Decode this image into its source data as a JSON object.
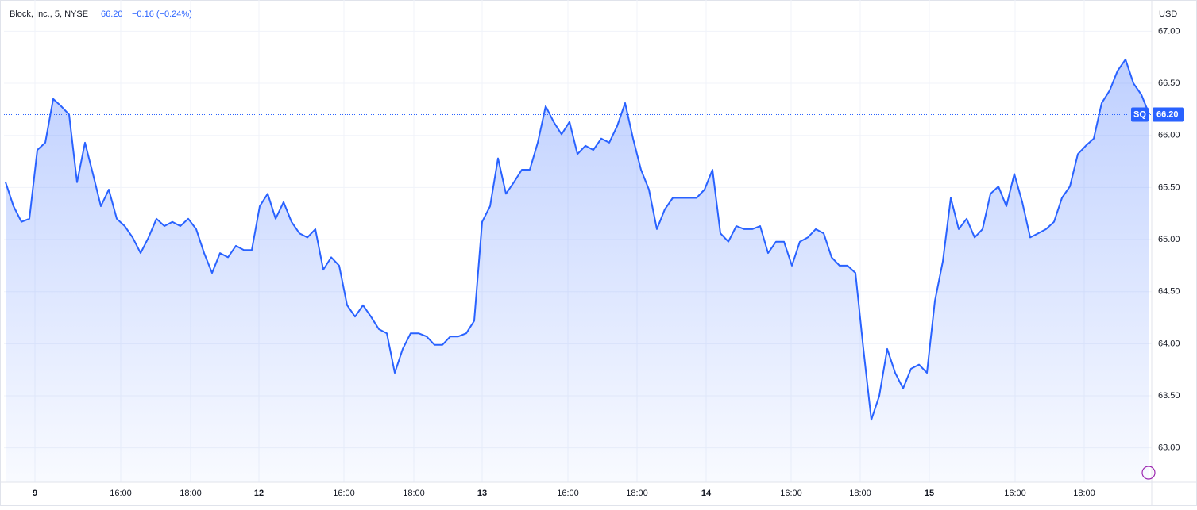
{
  "chart_data": {
    "type": "area",
    "title": "Block, Inc., 5, NYSE",
    "last_price": {
      "value": 66.2,
      "label": "66.20"
    },
    "change_text": "−0.16 (−0.24%)",
    "currency": "USD",
    "symbol": "SQ",
    "x": [
      0,
      1,
      2,
      3,
      4,
      5,
      6,
      7,
      8,
      9,
      10,
      11,
      12,
      13,
      14,
      15,
      16,
      17,
      18,
      19,
      20,
      21,
      22,
      23,
      24,
      25,
      26,
      27,
      28,
      29,
      30,
      31,
      32,
      33,
      34,
      35,
      36,
      37,
      38,
      39,
      40,
      41,
      42,
      43,
      44,
      45,
      46,
      47,
      48,
      49,
      50,
      51,
      52,
      53,
      54,
      55,
      56,
      57,
      58,
      59,
      60,
      61,
      62,
      63,
      64,
      65,
      66,
      67,
      68,
      69,
      70,
      71,
      72,
      73,
      74,
      75,
      76,
      77,
      78,
      79,
      80,
      81,
      82,
      83,
      84,
      85,
      86,
      87,
      88,
      89,
      90,
      91,
      92,
      93,
      94,
      95,
      96,
      97,
      98,
      99,
      100,
      101,
      102,
      103,
      104,
      105,
      106,
      107,
      108,
      109,
      110,
      111,
      112,
      113,
      114,
      115,
      116,
      117,
      118,
      119,
      120,
      121,
      122,
      123,
      124,
      125,
      126,
      127,
      128,
      129,
      130,
      131,
      132,
      133,
      134,
      135,
      136,
      137,
      138,
      139,
      140,
      141,
      142,
      143,
      144
    ],
    "series": [
      {
        "name": "SQ",
        "color": "#2962ff",
        "values": [
          65.55,
          65.32,
          65.17,
          65.2,
          65.86,
          65.93,
          66.35,
          66.28,
          66.2,
          65.55,
          65.93,
          65.63,
          65.32,
          65.48,
          65.2,
          65.13,
          65.02,
          64.87,
          65.02,
          65.2,
          65.13,
          65.17,
          65.13,
          65.2,
          65.1,
          64.87,
          64.68,
          64.87,
          64.83,
          64.94,
          64.9,
          64.9,
          65.32,
          65.44,
          65.2,
          65.36,
          65.17,
          65.06,
          65.02,
          65.1,
          64.71,
          64.83,
          64.75,
          64.37,
          64.26,
          64.37,
          64.26,
          64.14,
          64.1,
          63.72,
          63.95,
          64.1,
          64.1,
          64.07,
          63.99,
          63.99,
          64.07,
          64.07,
          64.1,
          64.22,
          65.17,
          65.32,
          65.78,
          65.44,
          65.55,
          65.67,
          65.67,
          65.93,
          66.28,
          66.13,
          66.01,
          66.13,
          65.82,
          65.9,
          65.86,
          65.97,
          65.93,
          66.09,
          66.31,
          65.97,
          65.67,
          65.48,
          65.1,
          65.29,
          65.4,
          65.4,
          65.4,
          65.4,
          65.48,
          65.67,
          65.06,
          64.98,
          65.13,
          65.1,
          65.1,
          65.13,
          64.87,
          64.98,
          64.98,
          64.75,
          64.98,
          65.02,
          65.1,
          65.06,
          64.83,
          64.75,
          64.75,
          64.68,
          63.95,
          63.27,
          63.5,
          63.95,
          63.72,
          63.57,
          63.76,
          63.8,
          63.72,
          64.41,
          64.79,
          65.4,
          65.1,
          65.2,
          65.02,
          65.1,
          65.44,
          65.51,
          65.32,
          65.63,
          65.36,
          65.02,
          65.06,
          65.1,
          65.17,
          65.4,
          65.51,
          65.82,
          65.9,
          65.97,
          66.31,
          66.43,
          66.62,
          66.73,
          66.5,
          66.39,
          66.2
        ]
      }
    ],
    "xlim": [
      -0.2,
      144.3
    ],
    "ylim": [
      62.67,
      67.3
    ],
    "xticks": [
      {
        "value": 3.7,
        "label": "9"
      },
      {
        "value": 14.5,
        "label": "16:00"
      },
      {
        "value": 23.3,
        "label": "18:00"
      },
      {
        "value": 31.9,
        "label": "12"
      },
      {
        "value": 42.6,
        "label": "16:00"
      },
      {
        "value": 51.4,
        "label": "18:00"
      },
      {
        "value": 60,
        "label": "13"
      },
      {
        "value": 70.8,
        "label": "16:00"
      },
      {
        "value": 79.5,
        "label": "18:00"
      },
      {
        "value": 88.2,
        "label": "14"
      },
      {
        "value": 98.9,
        "label": "16:00"
      },
      {
        "value": 107.6,
        "label": "18:00"
      },
      {
        "value": 116.3,
        "label": "15"
      },
      {
        "value": 127.1,
        "label": "16:00"
      },
      {
        "value": 135.8,
        "label": "18:00"
      }
    ],
    "yticks": [
      {
        "value": 63,
        "label": "63.00"
      },
      {
        "value": 63.5,
        "label": "63.50"
      },
      {
        "value": 64,
        "label": "64.00"
      },
      {
        "value": 64.5,
        "label": "64.50"
      },
      {
        "value": 65,
        "label": "65.00"
      },
      {
        "value": 65.5,
        "label": "65.50"
      },
      {
        "value": 66,
        "label": "66.00"
      },
      {
        "value": 66.5,
        "label": "66.50"
      },
      {
        "value": 67,
        "label": "67.00"
      }
    ],
    "grid": true
  }
}
